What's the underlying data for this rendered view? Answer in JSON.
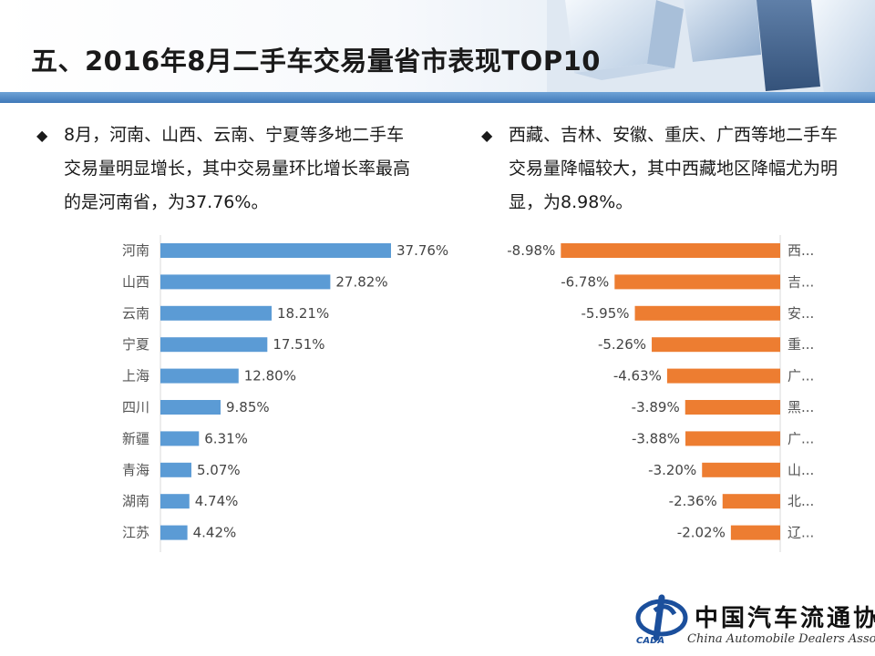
{
  "page": {
    "title": "五、2016年8月二手车交易量省市表现TOP10"
  },
  "bullets": {
    "left": "8月，河南、山西、云南、宁夏等多地二手车交易量明显增长，其中交易量环比增长率最高的是河南省，为37.76%。",
    "right": "西藏、吉林、安徽、重庆、广西等地二手车交易量降幅较大，其中西藏地区降幅尤为明显，为8.98%。",
    "marker": "◆"
  },
  "logo": {
    "name": "中国汽车流通协会",
    "english": "China Automobile Dealers Association",
    "abbr": "CADA"
  },
  "colors": {
    "title_band": "#3f78b8",
    "bar_blue": "#5b9bd5",
    "bar_orange": "#ed7d31",
    "axis": "#d9d9d9"
  },
  "chart_data": [
    {
      "type": "bar",
      "orientation": "horizontal",
      "categories": [
        "河南",
        "山西",
        "云南",
        "宁夏",
        "上海",
        "四川",
        "新疆",
        "青海",
        "湖南",
        "江苏"
      ],
      "values": [
        37.76,
        27.82,
        18.21,
        17.51,
        12.8,
        9.85,
        6.31,
        5.07,
        4.74,
        4.42
      ],
      "data_labels": [
        "37.76%",
        "27.82%",
        "18.21%",
        "17.51%",
        "12.80%",
        "9.85%",
        "6.31%",
        "5.07%",
        "4.74%",
        "4.42%"
      ],
      "unit": "%",
      "xlim": [
        0,
        40
      ],
      "grid": false,
      "color": "#5b9bd5"
    },
    {
      "type": "bar",
      "orientation": "horizontal",
      "categories": [
        "西...",
        "吉...",
        "安...",
        "重...",
        "广...",
        "黑...",
        "广...",
        "山...",
        "北...",
        "辽..."
      ],
      "values": [
        -8.98,
        -6.78,
        -5.95,
        -5.26,
        -4.63,
        -3.89,
        -3.88,
        -3.2,
        -2.36,
        -2.02
      ],
      "data_labels": [
        "-8.98%",
        "-6.78%",
        "-5.95%",
        "-5.26%",
        "-4.63%",
        "-3.89%",
        "-3.88%",
        "-3.20%",
        "-2.36%",
        "-2.02%"
      ],
      "unit": "%",
      "xlim": [
        -10,
        0
      ],
      "grid": false,
      "color": "#ed7d31"
    }
  ]
}
